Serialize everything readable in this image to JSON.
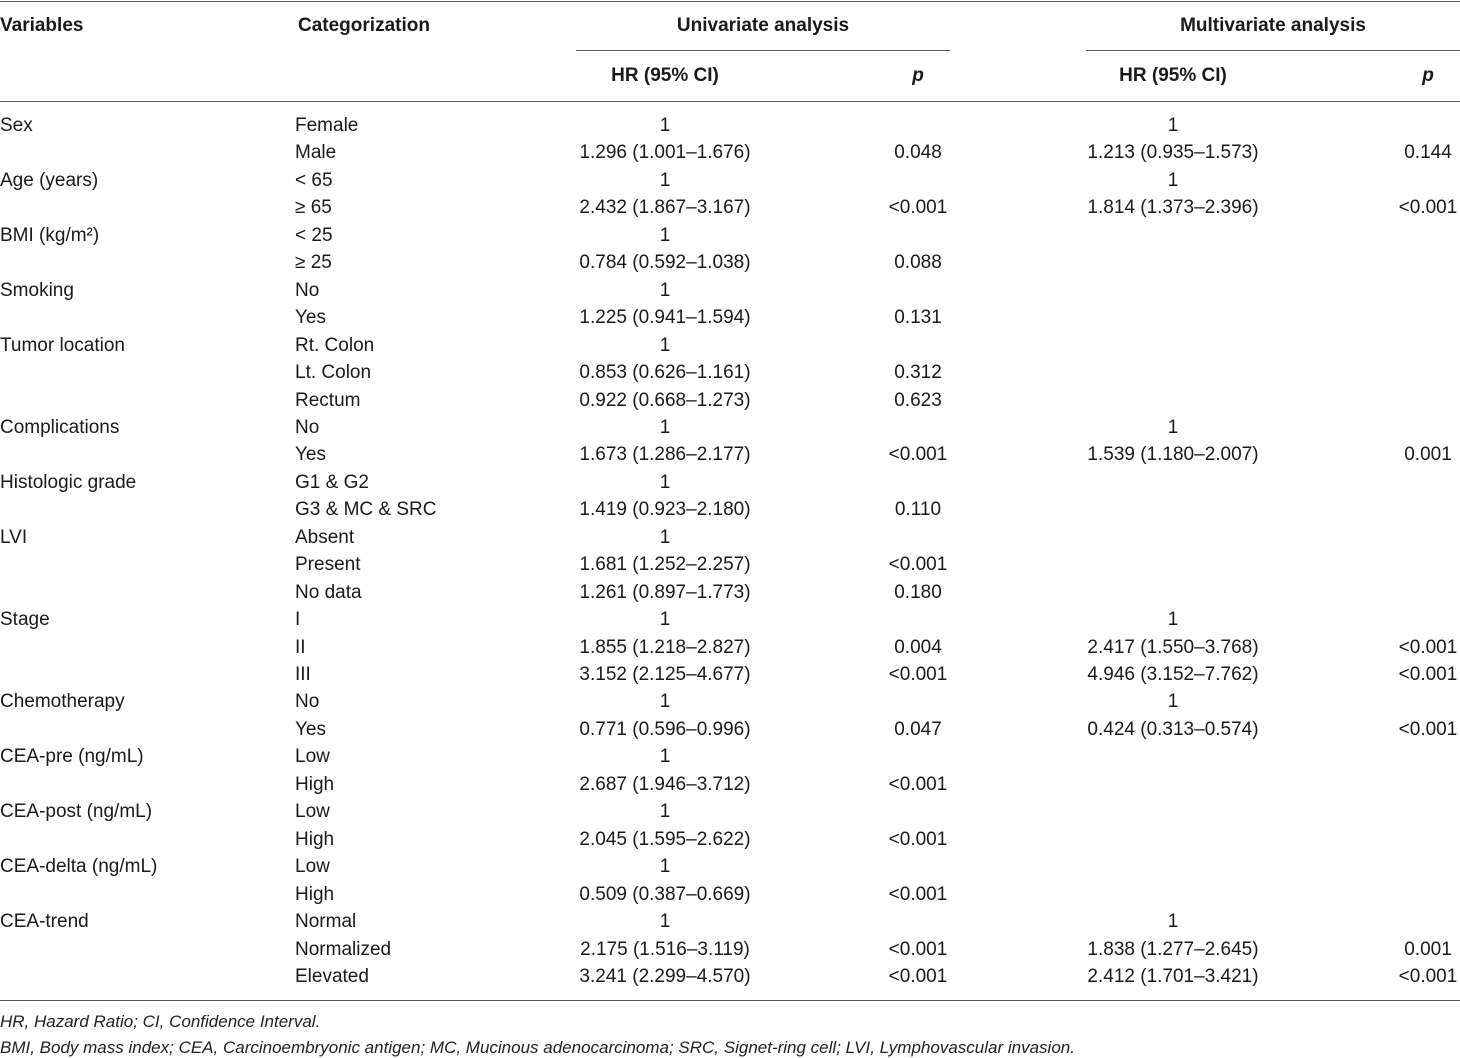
{
  "header": {
    "variables": "Variables",
    "categorization": "Categorization",
    "univariate": "Univariate analysis",
    "multivariate": "Multivariate analysis",
    "hr_ci": "HR (95% CI)",
    "p": "p"
  },
  "rows": [
    {
      "variable": "Sex",
      "category": "Female",
      "uni_hr": "1",
      "uni_p": "",
      "multi_hr": "1",
      "multi_p": ""
    },
    {
      "variable": "",
      "category": "Male",
      "uni_hr": "1.296 (1.001–1.676)",
      "uni_p": "0.048",
      "multi_hr": "1.213 (0.935–1.573)",
      "multi_p": "0.144"
    },
    {
      "variable": "Age (years)",
      "category": "< 65",
      "uni_hr": "1",
      "uni_p": "",
      "multi_hr": "1",
      "multi_p": ""
    },
    {
      "variable": "",
      "category": "≥ 65",
      "uni_hr": "2.432 (1.867–3.167)",
      "uni_p": "<0.001",
      "multi_hr": "1.814 (1.373–2.396)",
      "multi_p": "<0.001"
    },
    {
      "variable": "BMI (kg/m²)",
      "category": "< 25",
      "uni_hr": "1",
      "uni_p": "",
      "multi_hr": "",
      "multi_p": ""
    },
    {
      "variable": "",
      "category": "≥ 25",
      "uni_hr": "0.784 (0.592–1.038)",
      "uni_p": "0.088",
      "multi_hr": "",
      "multi_p": ""
    },
    {
      "variable": "Smoking",
      "category": "No",
      "uni_hr": "1",
      "uni_p": "",
      "multi_hr": "",
      "multi_p": ""
    },
    {
      "variable": "",
      "category": "Yes",
      "uni_hr": "1.225 (0.941–1.594)",
      "uni_p": "0.131",
      "multi_hr": "",
      "multi_p": ""
    },
    {
      "variable": "Tumor location",
      "category": "Rt. Colon",
      "uni_hr": "1",
      "uni_p": "",
      "multi_hr": "",
      "multi_p": ""
    },
    {
      "variable": "",
      "category": "Lt. Colon",
      "uni_hr": "0.853 (0.626–1.161)",
      "uni_p": "0.312",
      "multi_hr": "",
      "multi_p": ""
    },
    {
      "variable": "",
      "category": "Rectum",
      "uni_hr": "0.922 (0.668–1.273)",
      "uni_p": "0.623",
      "multi_hr": "",
      "multi_p": ""
    },
    {
      "variable": "Complications",
      "category": "No",
      "uni_hr": "1",
      "uni_p": "",
      "multi_hr": "1",
      "multi_p": ""
    },
    {
      "variable": "",
      "category": "Yes",
      "uni_hr": "1.673 (1.286–2.177)",
      "uni_p": "<0.001",
      "multi_hr": "1.539 (1.180–2.007)",
      "multi_p": "0.001"
    },
    {
      "variable": "Histologic grade",
      "category": "G1 & G2",
      "uni_hr": "1",
      "uni_p": "",
      "multi_hr": "",
      "multi_p": ""
    },
    {
      "variable": "",
      "category": "G3 & MC & SRC",
      "uni_hr": "1.419 (0.923–2.180)",
      "uni_p": "0.110",
      "multi_hr": "",
      "multi_p": ""
    },
    {
      "variable": "LVI",
      "category": "Absent",
      "uni_hr": "1",
      "uni_p": "",
      "multi_hr": "",
      "multi_p": ""
    },
    {
      "variable": "",
      "category": "Present",
      "uni_hr": "1.681 (1.252–2.257)",
      "uni_p": "<0.001",
      "multi_hr": "",
      "multi_p": ""
    },
    {
      "variable": "",
      "category": "No data",
      "uni_hr": "1.261 (0.897–1.773)",
      "uni_p": "0.180",
      "multi_hr": "",
      "multi_p": ""
    },
    {
      "variable": "Stage",
      "category": "I",
      "uni_hr": "1",
      "uni_p": "",
      "multi_hr": "1",
      "multi_p": ""
    },
    {
      "variable": "",
      "category": "II",
      "uni_hr": "1.855 (1.218–2.827)",
      "uni_p": "0.004",
      "multi_hr": "2.417 (1.550–3.768)",
      "multi_p": "<0.001"
    },
    {
      "variable": "",
      "category": "III",
      "uni_hr": "3.152 (2.125–4.677)",
      "uni_p": "<0.001",
      "multi_hr": "4.946 (3.152–7.762)",
      "multi_p": "<0.001"
    },
    {
      "variable": "Chemotherapy",
      "category": "No",
      "uni_hr": "1",
      "uni_p": "",
      "multi_hr": "1",
      "multi_p": ""
    },
    {
      "variable": "",
      "category": "Yes",
      "uni_hr": "0.771 (0.596–0.996)",
      "uni_p": "0.047",
      "multi_hr": "0.424 (0.313–0.574)",
      "multi_p": "<0.001"
    },
    {
      "variable": "CEA-pre (ng/mL)",
      "category": "Low",
      "uni_hr": "1",
      "uni_p": "",
      "multi_hr": "",
      "multi_p": ""
    },
    {
      "variable": "",
      "category": "High",
      "uni_hr": "2.687 (1.946–3.712)",
      "uni_p": "<0.001",
      "multi_hr": "",
      "multi_p": ""
    },
    {
      "variable": "CEA-post (ng/mL)",
      "category": "Low",
      "uni_hr": "1",
      "uni_p": "",
      "multi_hr": "",
      "multi_p": ""
    },
    {
      "variable": "",
      "category": "High",
      "uni_hr": "2.045 (1.595–2.622)",
      "uni_p": "<0.001",
      "multi_hr": "",
      "multi_p": ""
    },
    {
      "variable": "CEA-delta (ng/mL)",
      "category": "Low",
      "uni_hr": "1",
      "uni_p": "",
      "multi_hr": "",
      "multi_p": ""
    },
    {
      "variable": "",
      "category": "High",
      "uni_hr": "0.509 (0.387–0.669)",
      "uni_p": "<0.001",
      "multi_hr": "",
      "multi_p": ""
    },
    {
      "variable": "CEA-trend",
      "category": "Normal",
      "uni_hr": "1",
      "uni_p": "",
      "multi_hr": "1",
      "multi_p": ""
    },
    {
      "variable": "",
      "category": "Normalized",
      "uni_hr": "2.175 (1.516–3.119)",
      "uni_p": "<0.001",
      "multi_hr": "1.838 (1.277–2.645)",
      "multi_p": "0.001"
    },
    {
      "variable": "",
      "category": "Elevated",
      "uni_hr": "3.241 (2.299–4.570)",
      "uni_p": "<0.001",
      "multi_hr": "2.412 (1.701–3.421)",
      "multi_p": "<0.001"
    }
  ],
  "footnotes": [
    "HR, Hazard Ratio; CI, Confidence Interval.",
    "BMI, Body mass index; CEA, Carcinoembryonic antigen; MC, Mucinous adenocarcinoma; SRC, Signet-ring cell; LVI, Lymphovascular invasion."
  ]
}
